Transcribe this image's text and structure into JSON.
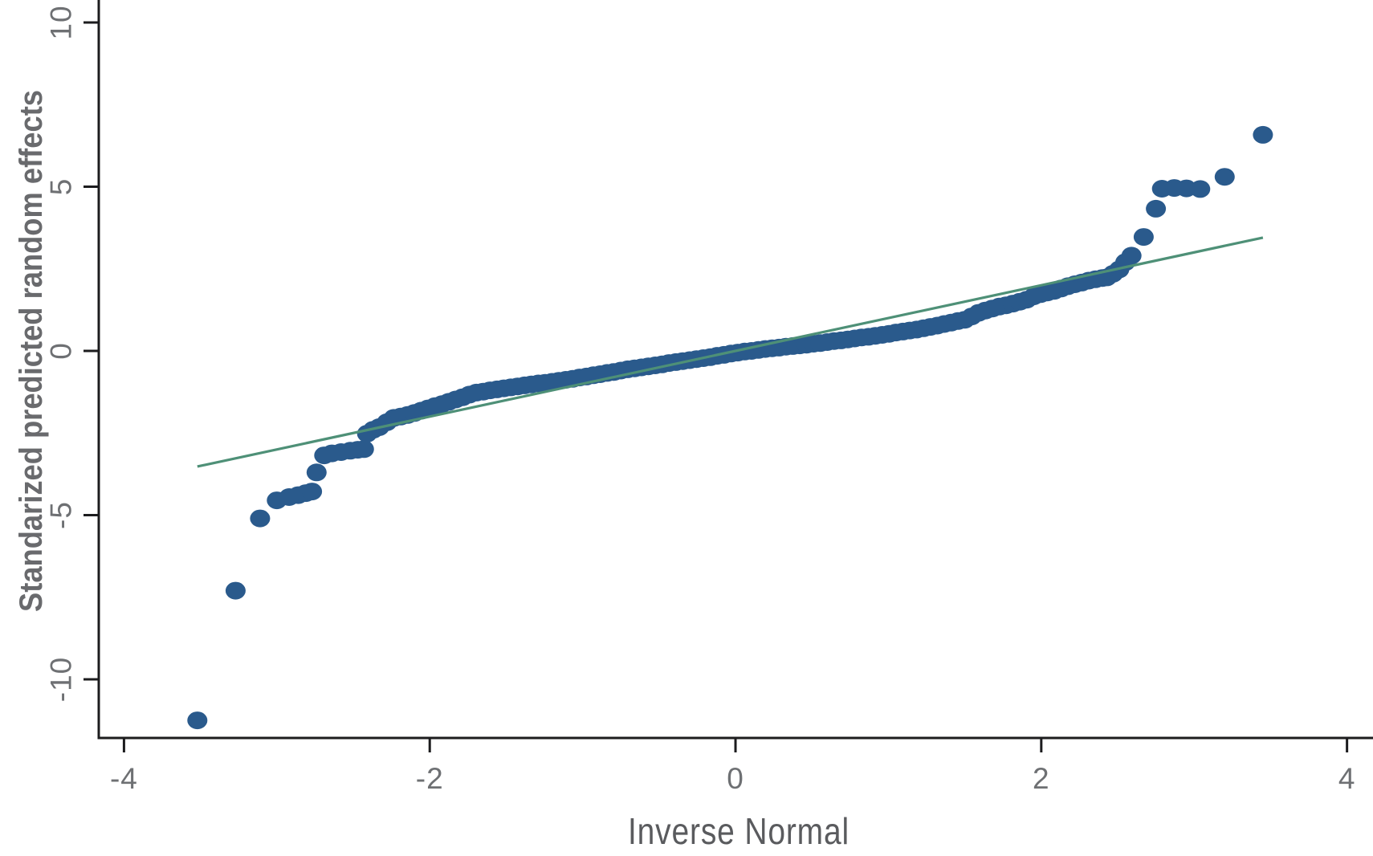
{
  "chart_data": {
    "type": "scatter",
    "title": "",
    "xlabel": "Inverse Normal",
    "ylabel": "Standarized predicted random effects",
    "x_ticks": [
      -4,
      -2,
      0,
      2,
      4
    ],
    "y_ticks": [
      -10,
      -5,
      0,
      5,
      10
    ],
    "xlim": [
      -4.165,
      4.17
    ],
    "ylim": [
      -11.785,
      10.685
    ],
    "grid": false,
    "legend_position": "none",
    "reference_line": {
      "label": "normal reference line",
      "x1": -3.52,
      "y1": -3.52,
      "x2": 3.45,
      "y2": 3.45
    },
    "series": [
      {
        "name": "standardized predicted random effects",
        "marker": "circle",
        "points": [
          [
            -3.52,
            -11.25
          ],
          [
            -3.27,
            -7.3
          ],
          [
            -3.11,
            -5.1
          ],
          [
            -3.0,
            -4.55
          ],
          [
            -2.92,
            -4.45
          ],
          [
            -2.86,
            -4.39
          ],
          [
            -2.81,
            -4.33
          ],
          [
            -2.77,
            -4.28
          ],
          [
            -2.74,
            -3.7
          ],
          [
            -2.69,
            -3.18
          ],
          [
            -2.64,
            -3.12
          ],
          [
            -2.58,
            -3.08
          ],
          [
            -2.52,
            -3.04
          ],
          [
            -2.47,
            -3.01
          ],
          [
            -2.43,
            -2.99
          ],
          [
            -2.41,
            -2.52
          ],
          [
            -2.37,
            -2.4
          ],
          [
            -2.33,
            -2.32
          ],
          [
            -2.28,
            -2.17
          ],
          [
            -2.235,
            -2.04
          ],
          [
            -2.19,
            -2.0
          ],
          [
            -2.145,
            -1.95
          ],
          [
            -2.1,
            -1.89
          ],
          [
            -2.055,
            -1.82
          ],
          [
            -2.01,
            -1.75
          ],
          [
            -1.965,
            -1.68
          ],
          [
            -1.92,
            -1.62
          ],
          [
            -1.875,
            -1.55
          ],
          [
            -1.83,
            -1.48
          ],
          [
            -1.785,
            -1.41
          ],
          [
            -1.74,
            -1.33
          ],
          [
            -1.695,
            -1.27
          ],
          [
            -1.65,
            -1.24
          ],
          [
            -1.605,
            -1.2
          ],
          [
            -1.56,
            -1.17
          ],
          [
            -1.515,
            -1.14
          ],
          [
            -1.47,
            -1.11
          ],
          [
            -1.425,
            -1.08
          ],
          [
            -1.38,
            -1.05
          ],
          [
            -1.335,
            -1.02
          ],
          [
            -1.29,
            -0.99
          ],
          [
            -1.245,
            -0.97
          ],
          [
            -1.2,
            -0.94
          ],
          [
            -1.155,
            -0.91
          ],
          [
            -1.11,
            -0.88
          ],
          [
            -1.065,
            -0.85
          ],
          [
            -1.02,
            -0.81
          ],
          [
            -0.975,
            -0.78
          ],
          [
            -0.93,
            -0.74
          ],
          [
            -0.885,
            -0.71
          ],
          [
            -0.84,
            -0.67
          ],
          [
            -0.795,
            -0.64
          ],
          [
            -0.75,
            -0.6
          ],
          [
            -0.705,
            -0.56
          ],
          [
            -0.66,
            -0.53
          ],
          [
            -0.615,
            -0.5
          ],
          [
            -0.57,
            -0.47
          ],
          [
            -0.525,
            -0.44
          ],
          [
            -0.48,
            -0.41
          ],
          [
            -0.435,
            -0.37
          ],
          [
            -0.39,
            -0.34
          ],
          [
            -0.345,
            -0.31
          ],
          [
            -0.3,
            -0.28
          ],
          [
            -0.255,
            -0.25
          ],
          [
            -0.21,
            -0.22
          ],
          [
            -0.165,
            -0.19
          ],
          [
            -0.12,
            -0.15
          ],
          [
            -0.075,
            -0.12
          ],
          [
            -0.03,
            -0.08
          ],
          [
            0.015,
            -0.05
          ],
          [
            0.06,
            -0.02
          ],
          [
            0.105,
            0.0
          ],
          [
            0.15,
            0.03
          ],
          [
            0.195,
            0.06
          ],
          [
            0.24,
            0.08
          ],
          [
            0.285,
            0.1
          ],
          [
            0.33,
            0.13
          ],
          [
            0.375,
            0.15
          ],
          [
            0.42,
            0.17
          ],
          [
            0.465,
            0.19
          ],
          [
            0.51,
            0.22
          ],
          [
            0.555,
            0.24
          ],
          [
            0.6,
            0.27
          ],
          [
            0.645,
            0.3
          ],
          [
            0.69,
            0.32
          ],
          [
            0.735,
            0.35
          ],
          [
            0.78,
            0.38
          ],
          [
            0.825,
            0.41
          ],
          [
            0.87,
            0.43
          ],
          [
            0.915,
            0.46
          ],
          [
            0.96,
            0.49
          ],
          [
            1.005,
            0.52
          ],
          [
            1.05,
            0.56
          ],
          [
            1.095,
            0.59
          ],
          [
            1.14,
            0.62
          ],
          [
            1.185,
            0.65
          ],
          [
            1.23,
            0.69
          ],
          [
            1.275,
            0.73
          ],
          [
            1.32,
            0.77
          ],
          [
            1.365,
            0.82
          ],
          [
            1.41,
            0.86
          ],
          [
            1.455,
            0.91
          ],
          [
            1.5,
            0.95
          ],
          [
            1.545,
            1.05
          ],
          [
            1.59,
            1.16
          ],
          [
            1.635,
            1.23
          ],
          [
            1.68,
            1.29
          ],
          [
            1.725,
            1.35
          ],
          [
            1.77,
            1.39
          ],
          [
            1.815,
            1.44
          ],
          [
            1.86,
            1.5
          ],
          [
            1.905,
            1.56
          ],
          [
            1.95,
            1.66
          ],
          [
            1.995,
            1.73
          ],
          [
            2.04,
            1.78
          ],
          [
            2.085,
            1.83
          ],
          [
            2.13,
            1.9
          ],
          [
            2.175,
            1.97
          ],
          [
            2.22,
            2.03
          ],
          [
            2.265,
            2.08
          ],
          [
            2.31,
            2.14
          ],
          [
            2.355,
            2.18
          ],
          [
            2.4,
            2.22
          ],
          [
            2.43,
            2.24
          ],
          [
            2.47,
            2.35
          ],
          [
            2.51,
            2.48
          ],
          [
            2.55,
            2.7
          ],
          [
            2.59,
            2.9
          ],
          [
            2.67,
            3.47
          ],
          [
            2.75,
            4.33
          ],
          [
            2.79,
            4.94
          ],
          [
            2.87,
            4.96
          ],
          [
            2.95,
            4.95
          ],
          [
            3.04,
            4.93
          ],
          [
            3.2,
            5.3
          ],
          [
            3.45,
            6.58
          ]
        ]
      }
    ]
  },
  "colors": {
    "marker": "#2a5a8c",
    "reference_line": "#4e9077",
    "axis": "#1c1c1e",
    "tick_text": "#6e7073",
    "x_title_text": "#5a5b5e",
    "y_title_text": "#696a6d",
    "background": "#ffffff"
  }
}
